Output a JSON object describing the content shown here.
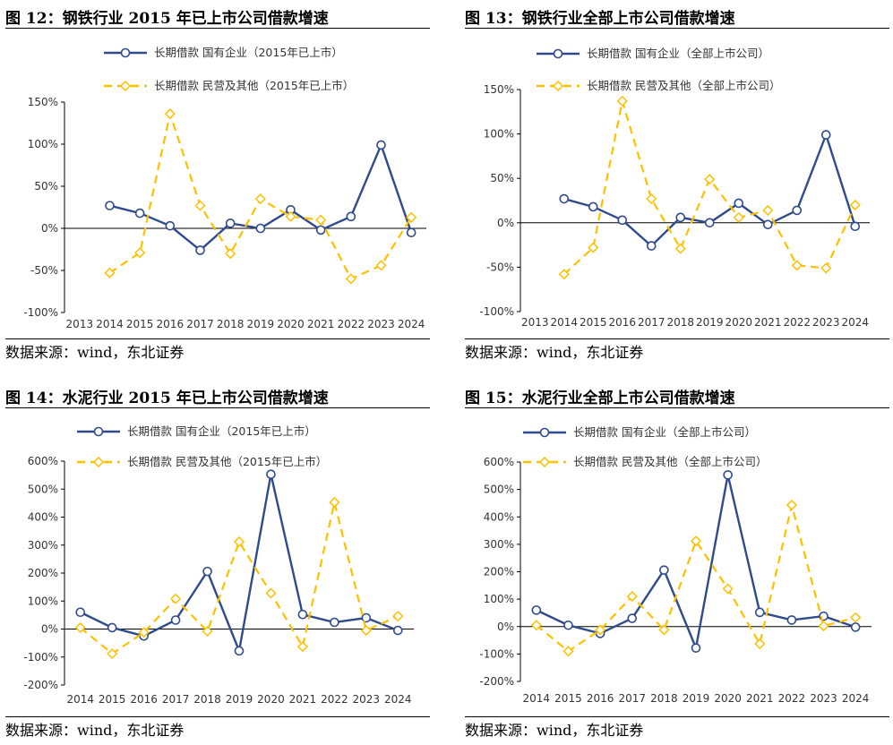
{
  "source_label": "数据来源：wind，东北证券",
  "colors": {
    "state": "#2F4B8C",
    "private": "#FFC000",
    "axis": "#000000"
  },
  "chart_data": [
    {
      "figure_title": "图 12：钢铁行业 2015 年已上市公司借款增速",
      "type": "line",
      "categories": [
        "2013",
        "2014",
        "2015",
        "2016",
        "2017",
        "2018",
        "2019",
        "2020",
        "2021",
        "2022",
        "2023",
        "2024"
      ],
      "ylim": [
        -100,
        150
      ],
      "ystep": 50,
      "yticks": [
        "-100%",
        "-50%",
        "0%",
        "50%",
        "100%",
        "150%"
      ],
      "series": [
        {
          "name": "长期借款 国有企业（2015年已上市）",
          "values": [
            null,
            27,
            18,
            3,
            -26,
            6,
            0,
            22,
            -2,
            14,
            99,
            -5
          ]
        },
        {
          "name": "长期借款 民营及其他（2015年已上市）",
          "values": [
            null,
            -53,
            -29,
            136,
            27,
            -30,
            35,
            14,
            10,
            -60,
            -44,
            13
          ]
        }
      ]
    },
    {
      "figure_title": "图 13：钢铁行业全部上市公司借款增速",
      "type": "line",
      "categories": [
        "2013",
        "2014",
        "2015",
        "2016",
        "2017",
        "2018",
        "2019",
        "2020",
        "2021",
        "2022",
        "2023",
        "2024"
      ],
      "ylim": [
        -100,
        150
      ],
      "ystep": 50,
      "yticks": [
        "-100%",
        "-50%",
        "0%",
        "50%",
        "100%",
        "150%"
      ],
      "series": [
        {
          "name": "长期借款 国有企业（全部上市公司）",
          "values": [
            null,
            27,
            18,
            3,
            -26,
            6,
            0,
            22,
            -2,
            14,
            99,
            -4
          ]
        },
        {
          "name": "长期借款 民营及其他（全部上市公司）",
          "values": [
            null,
            -58,
            -28,
            137,
            27,
            -29,
            49,
            6,
            14,
            -48,
            -51,
            20
          ]
        }
      ]
    },
    {
      "figure_title": "图 14：水泥行业 2015 年已上市公司借款增速",
      "type": "line",
      "categories": [
        "2014",
        "2015",
        "2016",
        "2017",
        "2018",
        "2019",
        "2020",
        "2021",
        "2022",
        "2023",
        "2024"
      ],
      "ylim": [
        -200,
        600
      ],
      "ystep": 100,
      "yticks": [
        "-200%",
        "-100%",
        "0%",
        "100%",
        "200%",
        "300%",
        "400%",
        "500%",
        "600%"
      ],
      "series": [
        {
          "name": "长期借款 国有企业（2015年已上市）",
          "values": [
            60,
            5,
            -25,
            32,
            206,
            -78,
            553,
            52,
            24,
            40,
            -5
          ]
        },
        {
          "name": "长期借款 民营及其他（2015年已上市）",
          "values": [
            5,
            -88,
            -12,
            108,
            -8,
            312,
            128,
            -63,
            453,
            -5,
            46
          ]
        }
      ]
    },
    {
      "figure_title": "图 15：水泥行业全部上市公司借款增速",
      "type": "line",
      "categories": [
        "2014",
        "2015",
        "2016",
        "2017",
        "2018",
        "2019",
        "2020",
        "2021",
        "2022",
        "2023",
        "2024"
      ],
      "ylim": [
        -200,
        600
      ],
      "ystep": 100,
      "yticks": [
        "-200%",
        "-100%",
        "0%",
        "100%",
        "200%",
        "300%",
        "400%",
        "500%",
        "600%"
      ],
      "series": [
        {
          "name": "长期借款 国有企业（全部上市公司）",
          "values": [
            60,
            5,
            -25,
            30,
            206,
            -78,
            553,
            52,
            24,
            38,
            -2
          ]
        },
        {
          "name": "长期借款 民营及其他（全部上市公司）",
          "values": [
            5,
            -90,
            -12,
            110,
            -12,
            312,
            138,
            -63,
            443,
            2,
            33
          ]
        }
      ]
    }
  ]
}
